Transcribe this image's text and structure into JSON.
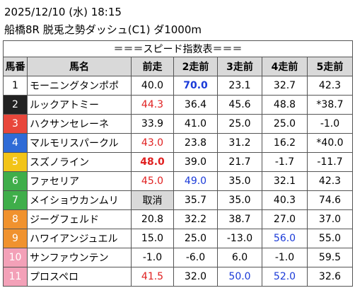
{
  "header": {
    "datetime": "2025/12/10 (水) 18:15",
    "race": "船橋8R 脱兎之勢ダッシュ(C1) ダ1000m"
  },
  "table": {
    "title": "＝＝＝スピード指数表＝＝＝",
    "columns": [
      "馬番",
      "馬名",
      "前走",
      "2走前",
      "3走前",
      "4走前",
      "5走前"
    ],
    "rows": [
      {
        "number": "1",
        "name": "モーニングタンポポ",
        "frame": "#ffffff",
        "frame_text": "#000000",
        "scores": [
          "40.0",
          "70.0",
          "23.1",
          "32.7",
          "42.3"
        ],
        "marks": [
          null,
          "blue-bold",
          null,
          null,
          null
        ]
      },
      {
        "number": "2",
        "name": "ルックアトミー",
        "frame": "#222222",
        "frame_text": "#ffffff",
        "scores": [
          "44.3",
          "36.4",
          "45.6",
          "48.8",
          "*38.7"
        ],
        "marks": [
          "red",
          null,
          null,
          null,
          null
        ]
      },
      {
        "number": "3",
        "name": "ハクサンセレーネ",
        "frame": "#e8473b",
        "frame_text": "#ffffff",
        "scores": [
          "33.9",
          "41.0",
          "25.0",
          "25.0",
          "-1.0"
        ],
        "marks": [
          null,
          null,
          null,
          null,
          null
        ]
      },
      {
        "number": "4",
        "name": "マルモリスパークル",
        "frame": "#2f6bd6",
        "frame_text": "#ffffff",
        "scores": [
          "43.0",
          "23.8",
          "31.2",
          "16.2",
          "*40.0"
        ],
        "marks": [
          "red",
          null,
          null,
          null,
          null
        ]
      },
      {
        "number": "5",
        "name": "スズノライン",
        "frame": "#f2c418",
        "frame_text": "#ffffff",
        "scores": [
          "48.0",
          "39.0",
          "21.7",
          "-1.7",
          "-11.7"
        ],
        "marks": [
          "red-bold",
          null,
          null,
          null,
          null
        ]
      },
      {
        "number": "6",
        "name": "ファセリア",
        "frame": "#3fae4a",
        "frame_text": "#ffffff",
        "scores": [
          "45.0",
          "49.0",
          "35.0",
          "32.1",
          "42.3"
        ],
        "marks": [
          "red",
          "blue",
          null,
          null,
          null
        ]
      },
      {
        "number": "7",
        "name": "メイショウカンムリ",
        "frame": "#3fae4a",
        "frame_text": "#ffffff",
        "scores": [
          "取消",
          "35.7",
          "35.0",
          "40.3",
          "74.6"
        ],
        "marks": [
          "cancel",
          null,
          null,
          null,
          null
        ]
      },
      {
        "number": "8",
        "name": "ジーグフェルド",
        "frame": "#f0922e",
        "frame_text": "#ffffff",
        "scores": [
          "20.8",
          "32.2",
          "38.7",
          "27.0",
          "37.0"
        ],
        "marks": [
          null,
          null,
          null,
          null,
          null
        ]
      },
      {
        "number": "9",
        "name": "ハワイアンジュエル",
        "frame": "#f0922e",
        "frame_text": "#ffffff",
        "scores": [
          "15.0",
          "25.0",
          "-13.0",
          "56.0",
          "55.0"
        ],
        "marks": [
          null,
          null,
          null,
          "blue",
          null
        ]
      },
      {
        "number": "10",
        "name": "サンファウンテン",
        "frame": "#f3a1b8",
        "frame_text": "#ffffff",
        "scores": [
          "-1.0",
          "-6.0",
          "6.0",
          "-1.0",
          "59.5"
        ],
        "marks": [
          null,
          null,
          null,
          null,
          null
        ]
      },
      {
        "number": "11",
        "name": "プロスペロ",
        "frame": "#f3a1b8",
        "frame_text": "#ffffff",
        "scores": [
          "41.5",
          "32.0",
          "50.0",
          "52.0",
          "32.6"
        ],
        "marks": [
          "red",
          null,
          "blue",
          "blue",
          null
        ]
      }
    ]
  }
}
